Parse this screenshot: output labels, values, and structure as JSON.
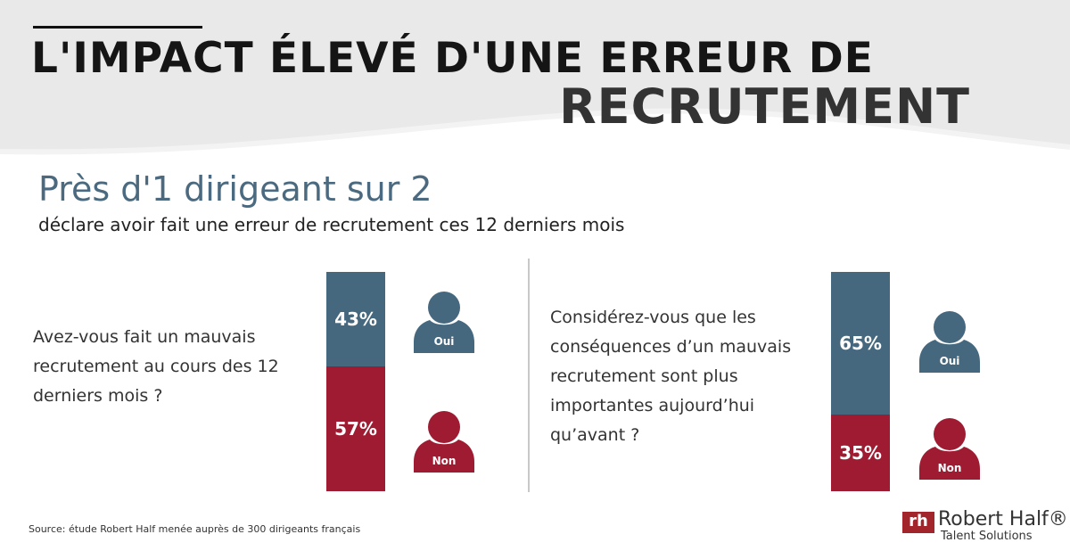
{
  "header": {
    "title_line1": "L'IMPACT ÉLEVÉ D'UNE ERREUR DE",
    "title_line2": "RECRUTEMENT"
  },
  "subtitle": {
    "headline": "Près d'1 dirigeant sur 2",
    "detail": "déclare avoir fait une erreur de recrutement ces 12 derniers mois"
  },
  "colors": {
    "oui": "#45687f",
    "non": "#9e1b32"
  },
  "chart_data": [
    {
      "type": "bar",
      "stacked": true,
      "question": "Avez-vous fait un mauvais recrutement au cours des 12 derniers mois ?",
      "categories": [
        "Oui",
        "Non"
      ],
      "values": [
        43,
        57
      ],
      "labels": [
        "43%",
        "57%"
      ]
    },
    {
      "type": "bar",
      "stacked": true,
      "question": "Considérez-vous que les conséquences d’un mauvais recrutement sont plus importantes aujourd’hui qu’avant ?",
      "categories": [
        "Oui",
        "Non"
      ],
      "values": [
        65,
        35
      ],
      "labels": [
        "65%",
        "35%"
      ]
    }
  ],
  "legend": {
    "oui": "Oui",
    "non": "Non"
  },
  "footer": {
    "source": "Source: étude Robert Half menée auprès de 300 dirigeants français",
    "logo_mark": "rh",
    "logo_name": "Robert Half®",
    "logo_tagline": "Talent Solutions"
  }
}
